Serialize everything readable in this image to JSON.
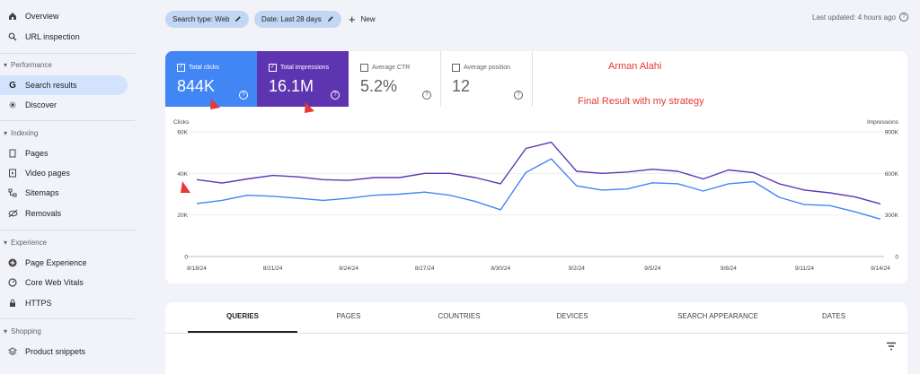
{
  "sidebar": {
    "top_items": [
      {
        "label": "Overview",
        "icon": "home-icon"
      },
      {
        "label": "URL inspection",
        "icon": "search-icon"
      }
    ],
    "sections": [
      {
        "title": "Performance",
        "items": [
          {
            "label": "Search results",
            "icon": "google-g-icon",
            "active": true
          },
          {
            "label": "Discover",
            "icon": "asterisk-icon"
          }
        ]
      },
      {
        "title": "Indexing",
        "items": [
          {
            "label": "Pages",
            "icon": "page-icon"
          },
          {
            "label": "Video pages",
            "icon": "video-page-icon"
          },
          {
            "label": "Sitemaps",
            "icon": "sitemap-icon"
          },
          {
            "label": "Removals",
            "icon": "eye-off-icon"
          }
        ]
      },
      {
        "title": "Experience",
        "items": [
          {
            "label": "Page Experience",
            "icon": "plus-circle-icon"
          },
          {
            "label": "Core Web Vitals",
            "icon": "gauge-icon"
          },
          {
            "label": "HTTPS",
            "icon": "lock-icon"
          }
        ]
      },
      {
        "title": "Shopping",
        "items": [
          {
            "label": "Product snippets",
            "icon": "layers-icon"
          }
        ]
      }
    ]
  },
  "toolbar": {
    "search_type_label": "Search type: Web",
    "date_label": "Date: Last 28 days",
    "new_label": "New",
    "last_updated": "Last updated: 4 hours ago"
  },
  "metrics": [
    {
      "label": "Total clicks",
      "value": "844K",
      "checked": true,
      "color": "#4285f4"
    },
    {
      "label": "Total impressions",
      "value": "16.1M",
      "checked": true,
      "color": "#5e35b1"
    },
    {
      "label": "Average CTR",
      "value": "5.2%",
      "checked": false,
      "color": "#ffffff"
    },
    {
      "label": "Average position",
      "value": "12",
      "checked": false,
      "color": "#ffffff"
    }
  ],
  "annotations": {
    "name": "Arman Alahi",
    "result": "Final Result with my strategy"
  },
  "chart_data": {
    "type": "line",
    "x": [
      "8/18/24",
      "8/19/24",
      "8/20/24",
      "8/21/24",
      "8/22/24",
      "8/23/24",
      "8/24/24",
      "8/25/24",
      "8/26/24",
      "8/27/24",
      "8/28/24",
      "8/29/24",
      "8/30/24",
      "8/31/24",
      "9/1/24",
      "9/2/24",
      "9/3/24",
      "9/4/24",
      "9/5/24",
      "9/6/24",
      "9/7/24",
      "9/8/24",
      "9/9/24",
      "9/10/24",
      "9/11/24",
      "9/12/24",
      "9/13/24",
      "9/14/24"
    ],
    "x_tick_labels": [
      "8/18/24",
      "8/21/24",
      "8/24/24",
      "8/27/24",
      "8/30/24",
      "9/2/24",
      "9/5/24",
      "9/8/24",
      "9/11/24",
      "9/14/24"
    ],
    "left_axis": {
      "label": "Clicks",
      "ticks": [
        "60K",
        "40K",
        "20K",
        "0"
      ],
      "ylim": [
        0,
        60000
      ]
    },
    "right_axis": {
      "label": "Impressions",
      "ticks": [
        "900K",
        "600K",
        "300K",
        "0"
      ],
      "ylim": [
        0,
        900000
      ]
    },
    "series": [
      {
        "name": "Total clicks",
        "axis": "left",
        "color": "#4285f4",
        "values": [
          25500,
          27000,
          29500,
          29000,
          28000,
          27000,
          28000,
          29500,
          30000,
          31000,
          29500,
          26500,
          22500,
          40500,
          47000,
          34000,
          32000,
          32500,
          35500,
          35000,
          31500,
          35000,
          36000,
          28500,
          25000,
          24500,
          21500,
          18000
        ]
      },
      {
        "name": "Total impressions",
        "axis": "right",
        "color": "#5e35b1",
        "values": [
          555000,
          530000,
          560000,
          585000,
          575000,
          555000,
          550000,
          570000,
          570000,
          600000,
          600000,
          570000,
          525000,
          780000,
          825000,
          615000,
          600000,
          610000,
          630000,
          615000,
          560000,
          625000,
          605000,
          525000,
          480000,
          460000,
          430000,
          380000
        ]
      }
    ]
  },
  "tabs": [
    "QUERIES",
    "PAGES",
    "COUNTRIES",
    "DEVICES",
    "SEARCH APPEARANCE",
    "DATES"
  ]
}
